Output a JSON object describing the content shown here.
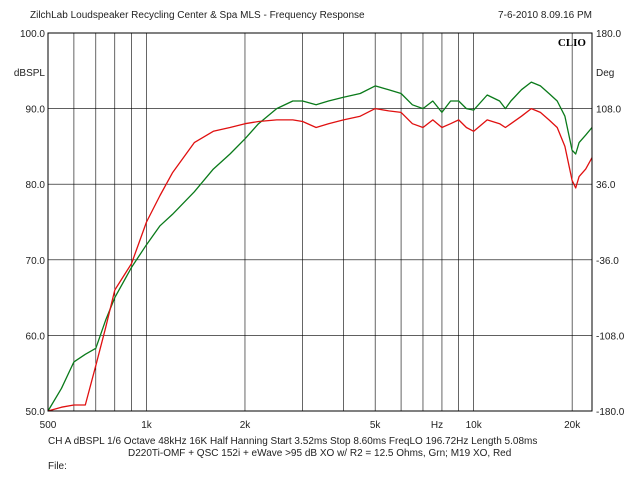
{
  "header": {
    "left_title": "ZilchLab Loudspeaker Recycling Center & Spa   MLS - Frequency Response",
    "timestamp": "7-6-2010 8.09.16 PM",
    "logo": "CLIO"
  },
  "footer": {
    "line1": "CH A   dBSPL   1/6 Octave   48kHz   16K   Half Hanning   Start 3.52ms     Stop 8.60ms     FreqLO 196.72Hz   Length 5.08ms",
    "line2": "D220Ti-OMF + QSC 152i + eWave >95 dB XO w/ R2 = 12.5 Ohms, Grn; M19 XO, Red",
    "file_label": "File:"
  },
  "chart_data": {
    "type": "line",
    "title": "MLS - Frequency Response",
    "ylabel_left": "dBSPL",
    "ylabel_right": "Deg",
    "x_unit_label": "Hz",
    "x_scale": "log",
    "xlim": [
      500,
      23000
    ],
    "ylim": [
      50,
      100
    ],
    "ylim_right": [
      -180,
      180
    ],
    "grid": true,
    "x_ticks": [
      500,
      1000,
      2000,
      5000,
      10000,
      20000
    ],
    "x_tick_labels": [
      "500",
      "1k",
      "2k",
      "5k",
      "10k",
      "20k"
    ],
    "y_ticks": [
      50,
      60,
      70,
      80,
      90,
      100
    ],
    "y_tick_labels": [
      "50.0",
      "60.0",
      "70.0",
      "80.0",
      "90.0",
      "100.0"
    ],
    "y_right_tick_labels": [
      "-180.0",
      "-108.0",
      "-36.0",
      "36.0",
      "108.0",
      "180.0"
    ],
    "series": [
      {
        "color": "#0a7a1a",
        "x": [
          500,
          550,
          600,
          650,
          700,
          750,
          800,
          900,
          1000,
          1100,
          1200,
          1400,
          1600,
          1800,
          2000,
          2200,
          2500,
          2800,
          3000,
          3300,
          3600,
          4000,
          4500,
          5000,
          5500,
          6000,
          6500,
          7000,
          7500,
          8000,
          8500,
          9000,
          9500,
          10000,
          11000,
          12000,
          12500,
          13000,
          14000,
          15000,
          16000,
          17000,
          18000,
          19000,
          20000,
          20500,
          21000,
          22000,
          23000
        ],
        "y": [
          50.0,
          53.0,
          56.5,
          57.5,
          58.3,
          62.0,
          65.0,
          69.0,
          72.0,
          74.5,
          76.0,
          79.0,
          82.0,
          84.0,
          86.0,
          88.0,
          90.0,
          91.0,
          91.0,
          90.5,
          91.0,
          91.5,
          92.0,
          93.0,
          92.5,
          92.0,
          90.5,
          90.0,
          91.0,
          89.5,
          91.0,
          91.0,
          90.0,
          89.8,
          91.8,
          91.0,
          90.0,
          91.0,
          92.5,
          93.5,
          93.0,
          92.0,
          91.0,
          89.0,
          84.5,
          84.0,
          85.5,
          86.5,
          87.5
        ]
      },
      {
        "color": "#e01010",
        "x": [
          500,
          550,
          600,
          650,
          700,
          750,
          800,
          900,
          1000,
          1100,
          1200,
          1400,
          1600,
          1800,
          2000,
          2200,
          2500,
          2800,
          3000,
          3300,
          3600,
          4000,
          4500,
          5000,
          5500,
          6000,
          6500,
          7000,
          7500,
          8000,
          8500,
          9000,
          9500,
          10000,
          11000,
          12000,
          12500,
          13000,
          14000,
          15000,
          16000,
          17000,
          18000,
          19000,
          20000,
          20500,
          21000,
          22000,
          23000
        ],
        "y": [
          50.0,
          50.5,
          50.8,
          50.8,
          56.0,
          61.0,
          66.0,
          69.5,
          75.0,
          78.5,
          81.5,
          85.5,
          87.0,
          87.5,
          88.0,
          88.3,
          88.5,
          88.5,
          88.3,
          87.5,
          88.0,
          88.5,
          89.0,
          90.0,
          89.7,
          89.5,
          88.0,
          87.5,
          88.5,
          87.5,
          88.0,
          88.5,
          87.5,
          87.0,
          88.5,
          88.0,
          87.5,
          88.0,
          89.0,
          90.0,
          89.5,
          88.5,
          87.5,
          85.0,
          80.5,
          79.5,
          81.0,
          82.0,
          83.5
        ]
      }
    ]
  }
}
